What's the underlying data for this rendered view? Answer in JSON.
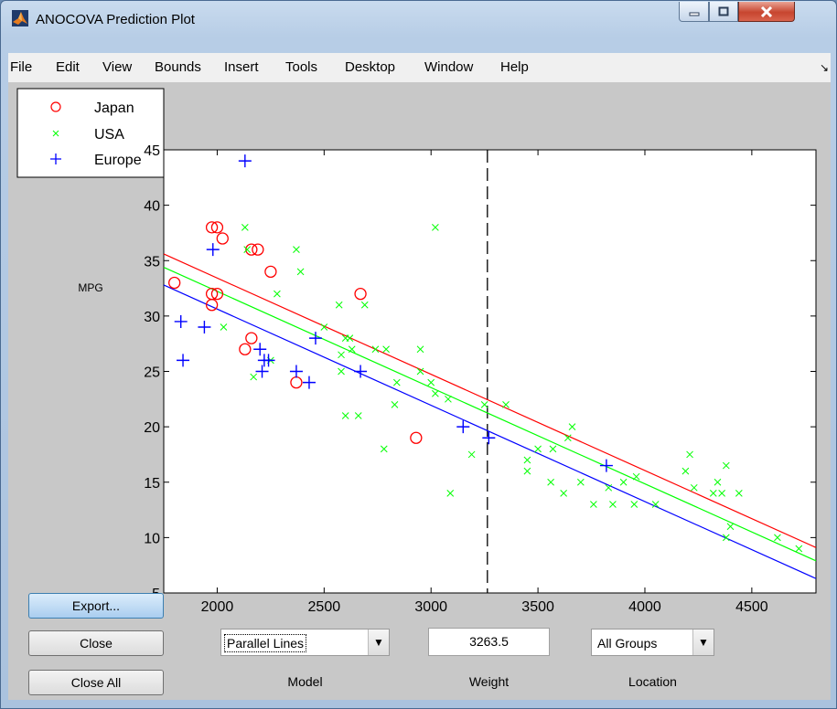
{
  "window": {
    "title": "ANOCOVA Prediction Plot"
  },
  "menu": [
    "File",
    "Edit",
    "View",
    "Bounds",
    "Insert",
    "Tools",
    "Desktop",
    "Window",
    "Help"
  ],
  "buttons": {
    "export": "Export...",
    "close": "Close",
    "close_all": "Close All"
  },
  "controls": {
    "model": {
      "value": "Parallel Lines",
      "caption": "Model"
    },
    "weight": {
      "value": "3263.5",
      "caption": "Weight"
    },
    "location": {
      "value": "All Groups",
      "caption": "Location"
    }
  },
  "chart_data": {
    "type": "scatter",
    "ylabel": "MPG",
    "xlim": [
      1750,
      4800
    ],
    "ylim": [
      5,
      45
    ],
    "xticks": [
      2000,
      2500,
      3000,
      3500,
      4000,
      4500
    ],
    "yticks": [
      5,
      10,
      15,
      20,
      25,
      30,
      35,
      40,
      45
    ],
    "legend_position": "top-left, outside axes",
    "grid": false,
    "crosshair_x": 3263.5,
    "series": [
      {
        "name": "Japan",
        "marker": "circle",
        "color": "#ff0000",
        "points": [
          [
            1800,
            33
          ],
          [
            1975,
            38
          ],
          [
            2000,
            38
          ],
          [
            2025,
            37
          ],
          [
            1975,
            32
          ],
          [
            2000,
            32
          ],
          [
            1975,
            31
          ],
          [
            2190,
            36
          ],
          [
            2160,
            36
          ],
          [
            2250,
            34
          ],
          [
            2670,
            32
          ],
          [
            2130,
            27
          ],
          [
            2160,
            28
          ],
          [
            2370,
            24
          ],
          [
            2930,
            19
          ]
        ],
        "fit": [
          [
            1750,
            35.6
          ],
          [
            4800,
            9.1
          ]
        ]
      },
      {
        "name": "USA",
        "marker": "x",
        "color": "#00ff00",
        "points": [
          [
            2130,
            38
          ],
          [
            2140,
            36
          ],
          [
            2370,
            36
          ],
          [
            2390,
            34
          ],
          [
            2280,
            32
          ],
          [
            2030,
            29
          ],
          [
            2170,
            24.5
          ],
          [
            2250,
            26
          ],
          [
            2500,
            29
          ],
          [
            2570,
            31
          ],
          [
            2600,
            28
          ],
          [
            2690,
            31
          ],
          [
            2580,
            26.5
          ],
          [
            2630,
            27
          ],
          [
            2740,
            27
          ],
          [
            2790,
            27
          ],
          [
            2950,
            27
          ],
          [
            2620,
            28
          ],
          [
            2580,
            25
          ],
          [
            2840,
            24
          ],
          [
            2830,
            22
          ],
          [
            2950,
            25
          ],
          [
            3000,
            24
          ],
          [
            3020,
            23
          ],
          [
            3080,
            22.5
          ],
          [
            3250,
            22
          ],
          [
            3350,
            22
          ],
          [
            3020,
            38
          ],
          [
            2600,
            21
          ],
          [
            2660,
            21
          ],
          [
            2780,
            18
          ],
          [
            3190,
            17.5
          ],
          [
            3090,
            14
          ],
          [
            3450,
            16
          ],
          [
            3450,
            17
          ],
          [
            3500,
            18
          ],
          [
            3570,
            18
          ],
          [
            3560,
            15
          ],
          [
            3620,
            14
          ],
          [
            3640,
            19
          ],
          [
            3660,
            20
          ],
          [
            3700,
            15
          ],
          [
            3760,
            13
          ],
          [
            3830,
            14.5
          ],
          [
            3850,
            13
          ],
          [
            3900,
            15
          ],
          [
            3950,
            13
          ],
          [
            3960,
            15.5
          ],
          [
            4050,
            13
          ],
          [
            4190,
            16
          ],
          [
            4210,
            17.5
          ],
          [
            4230,
            14.5
          ],
          [
            4320,
            14
          ],
          [
            4340,
            15
          ],
          [
            4360,
            14
          ],
          [
            4380,
            16.5
          ],
          [
            4380,
            10
          ],
          [
            4400,
            11
          ],
          [
            4440,
            14
          ],
          [
            4620,
            10
          ],
          [
            4720,
            9
          ]
        ],
        "fit": [
          [
            1750,
            34.4
          ],
          [
            4800,
            7.9
          ]
        ]
      },
      {
        "name": "Europe",
        "marker": "plus",
        "color": "#0000ff",
        "points": [
          [
            2130,
            44
          ],
          [
            1980,
            36
          ],
          [
            1830,
            29.5
          ],
          [
            1940,
            29
          ],
          [
            1840,
            26
          ],
          [
            2200,
            27
          ],
          [
            2220,
            26
          ],
          [
            2240,
            26
          ],
          [
            2210,
            25
          ],
          [
            2370,
            25
          ],
          [
            2430,
            24
          ],
          [
            2460,
            28
          ],
          [
            2670,
            25
          ],
          [
            3150,
            20
          ],
          [
            3270,
            19
          ],
          [
            3820,
            16.5
          ]
        ],
        "fit": [
          [
            1750,
            32.8
          ],
          [
            4800,
            6.3
          ]
        ]
      }
    ]
  }
}
